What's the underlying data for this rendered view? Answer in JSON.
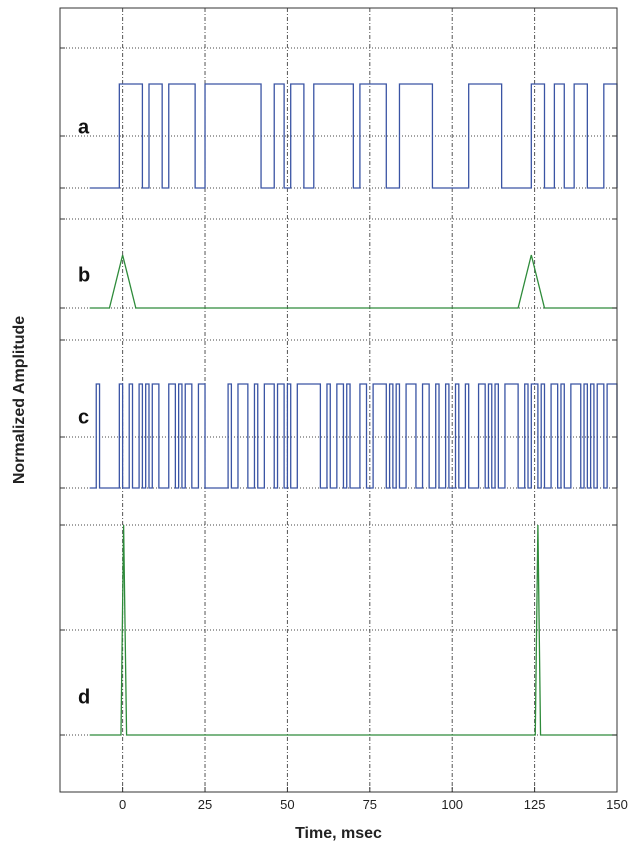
{
  "chart_data": {
    "type": "line",
    "xlabel": "Time, msec",
    "ylabel": "Normalized Amplitude",
    "xlim": [
      -19,
      150
    ],
    "x_ticks": [
      0,
      25,
      50,
      75,
      100,
      125,
      150
    ],
    "x_tick_labels": [
      "0",
      "25",
      "50",
      "75",
      "100",
      "125",
      "150"
    ],
    "grid": true,
    "colors": {
      "pulse_trains": "#3a54a4",
      "responses": "#2e8b3a",
      "grid": "#555555",
      "frame": "#333333"
    },
    "panels": [
      {
        "label": "a",
        "kind": "binary_sequence",
        "color": "#3a54a4",
        "x_start": -10,
        "x_end": 150,
        "initial_level": 0,
        "transitions": [
          -1,
          6,
          8,
          12,
          14,
          22,
          25,
          42,
          46,
          49,
          51,
          55,
          58,
          70,
          72,
          80,
          84,
          94,
          105,
          115,
          124,
          128,
          131,
          134,
          137,
          141,
          146,
          150
        ]
      },
      {
        "label": "b",
        "kind": "response",
        "color": "#2e8b3a",
        "x": [
          -10,
          -4,
          0,
          4,
          116,
          120,
          124,
          128,
          150
        ],
        "y": [
          0,
          0,
          1,
          0,
          0,
          0,
          1,
          0,
          0
        ]
      },
      {
        "label": "c",
        "kind": "binary_sequence",
        "color": "#3a54a4",
        "x_start": -10,
        "x_end": 150,
        "initial_level": 0,
        "transitions": [
          -8,
          -7,
          -1,
          0,
          2,
          3,
          5,
          6,
          7,
          8,
          9,
          11,
          14,
          16,
          17,
          18,
          19,
          21,
          23,
          25,
          32,
          33,
          35,
          38,
          40,
          41,
          43,
          46,
          47,
          49,
          50,
          51,
          53,
          60,
          62,
          63,
          65,
          67,
          68,
          69,
          72,
          74,
          76,
          80,
          81,
          82,
          83,
          84,
          86,
          89,
          91,
          93,
          95,
          96,
          98,
          99,
          101,
          102,
          104,
          105,
          108,
          110,
          111,
          112,
          113,
          114,
          116,
          120,
          122,
          123,
          124,
          126,
          127,
          128,
          130,
          132,
          133,
          134,
          136,
          139,
          140,
          141,
          142,
          143,
          144,
          146,
          147,
          150
        ]
      },
      {
        "label": "d",
        "kind": "response",
        "color": "#2e8b3a",
        "x": [
          -10,
          -0.5,
          0.3,
          1.2,
          125.2,
          126,
          126.8,
          150
        ],
        "y": [
          0,
          0,
          1,
          0,
          0,
          1,
          0,
          0
        ]
      }
    ]
  }
}
